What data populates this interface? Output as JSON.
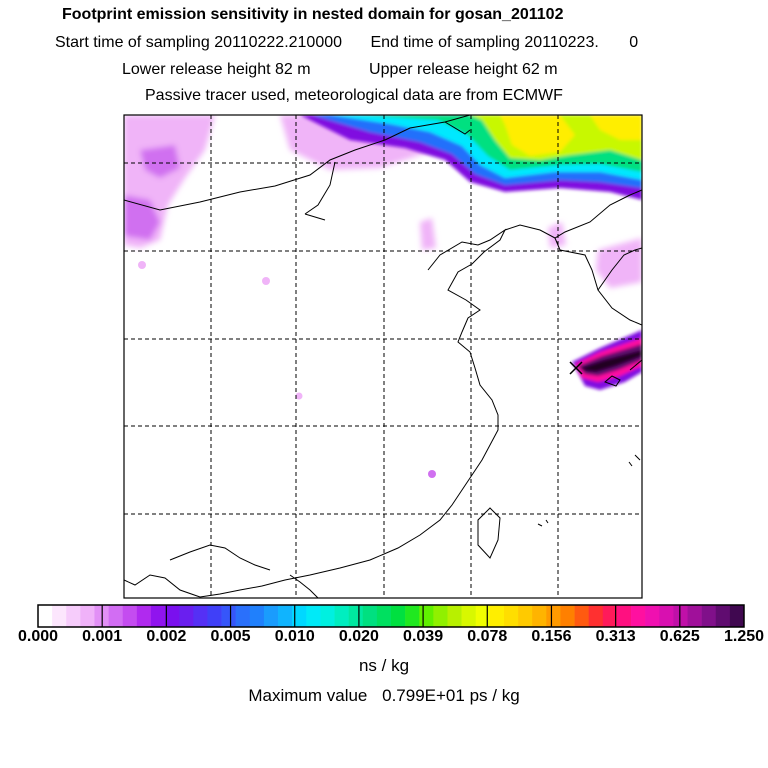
{
  "header": {
    "title": "Footprint emission sensitivity in nested domain for gosan_201102",
    "start_label": "Start time of sampling",
    "start_value": "20110222.210000",
    "end_label": "End time of sampling",
    "end_value": "20110223.",
    "end_suffix": "0",
    "lower_label": "Lower release height",
    "lower_value": "82 m",
    "upper_label": "Upper release height",
    "upper_value": "62 m",
    "note": "Passive tracer used, meteorological data are from ECMWF"
  },
  "colorbar": {
    "tick_labels": [
      "0.000",
      "0.001",
      "0.002",
      "0.005",
      "0.010",
      "0.020",
      "0.039",
      "0.078",
      "0.156",
      "0.313",
      "0.625",
      "1.250"
    ],
    "colors": [
      "#ffffff",
      "#fce6fd",
      "#f6ccfb",
      "#f0b2f9",
      "#e290f6",
      "#d26df3",
      "#c44cf0",
      "#b02aef",
      "#9014ee",
      "#7a10ee",
      "#6a1fef",
      "#5530f5",
      "#4040f8",
      "#3656fa",
      "#2a70fb",
      "#2080fc",
      "#1a9cfd",
      "#10b4fe",
      "#00d8ff",
      "#00eaf8",
      "#00f0e0",
      "#00eec0",
      "#00e8a0",
      "#00e080",
      "#00e060",
      "#00e040",
      "#20e820",
      "#60f000",
      "#90f000",
      "#b8f000",
      "#d8f800",
      "#f0ff00",
      "#ffee00",
      "#ffde00",
      "#ffca00",
      "#ffb400",
      "#ff9a00",
      "#ff8000",
      "#ff5a10",
      "#ff3030",
      "#ff1a5a",
      "#ff1080",
      "#ff10a0",
      "#f010b0",
      "#d810b0",
      "#c010a8",
      "#a0109a",
      "#80108a",
      "#600c70",
      "#400850"
    ]
  },
  "unit": "ns / kg",
  "maximum": {
    "label": "Maximum value",
    "value": "0.799E+01 ps / kg"
  },
  "map": {
    "receptor_marker": "x-marker-icon",
    "overlay_colors": {
      "light_magenta": "#f0b4f8",
      "magenta": "#d070f0",
      "purple": "#8010e0",
      "blue": "#2070fb",
      "cyan": "#00e8ff",
      "green": "#00e080",
      "yellow_green": "#c8f800",
      "yellow": "#ffee00",
      "pink": "#ff10a0",
      "dark_purple": "#600c70"
    }
  }
}
